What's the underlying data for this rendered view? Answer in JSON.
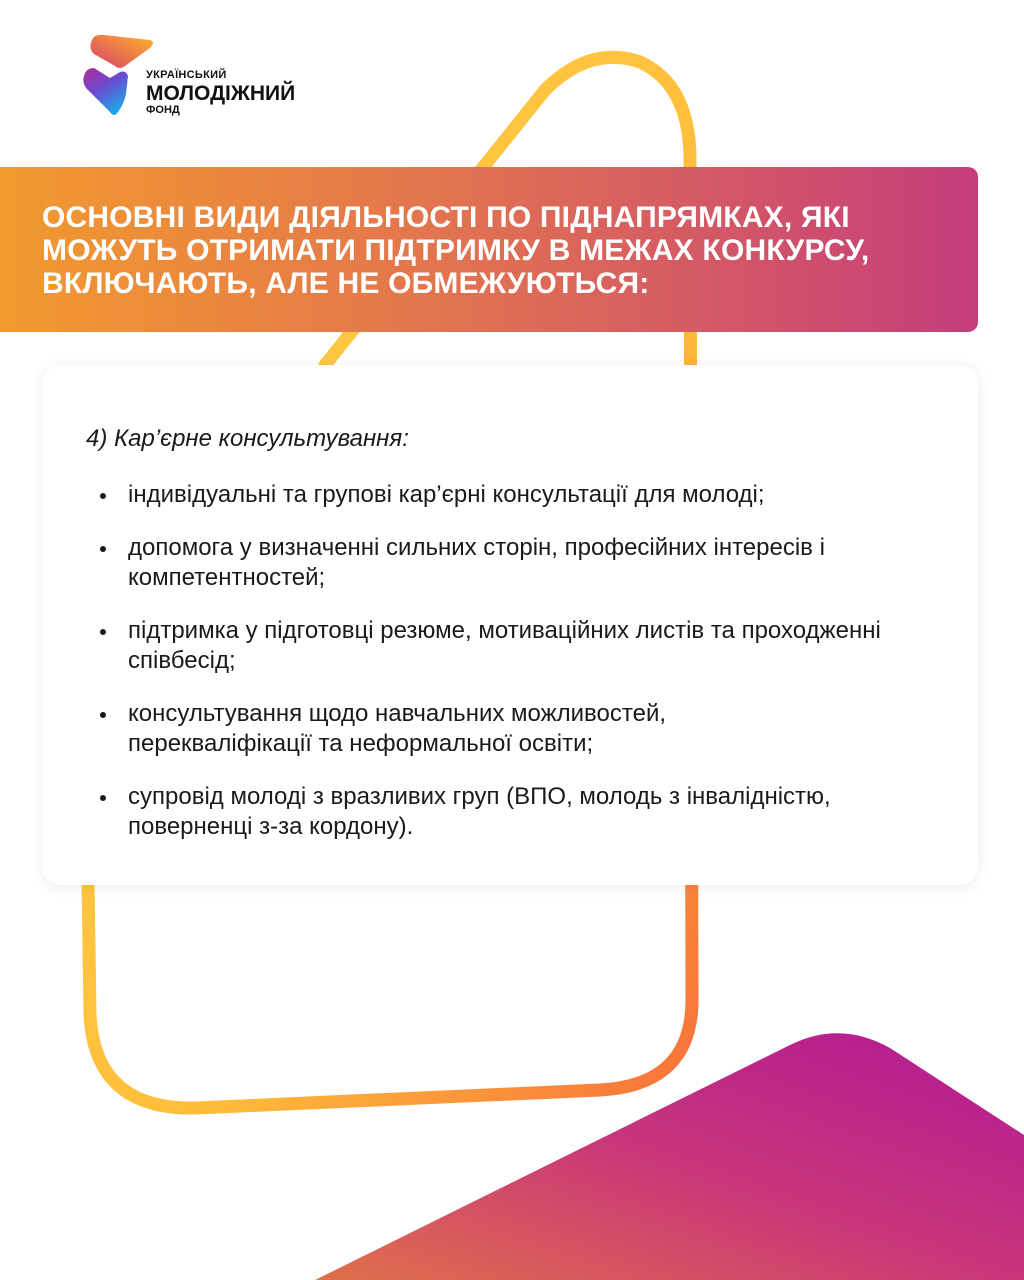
{
  "brand": {
    "logo_line1": "УКРАЇНСЬКИЙ",
    "logo_line2": "МОЛОДІЖНИЙ",
    "logo_line3": "ФОНД"
  },
  "header": {
    "title": "ОСНОВНІ ВИДИ ДІЯЛЬНОСТІ ПО ПІДНАПРЯМКАХ, ЯКІ МОЖУТЬ ОТРИМАТИ ПІДТРИМКУ В МЕЖАХ КОНКУРСУ, ВКЛЮЧАЮТЬ, АЛЕ НЕ ОБМЕЖУЮТЬСЯ:"
  },
  "content": {
    "subtitle": "4) Кар’єрне консультування:",
    "items": [
      "індивідуальні та групові кар’єрні консультації для молоді;",
      "допомога у визначенні сильних сторін, професійних інтересів і компетентностей;",
      "підтримка у підготовці резюме, мотиваційних листів та проходженні співбесід;",
      "консультування щодо навчальних можливостей, перекваліфікації та неформальної освіти;",
      "супровід молоді з вразливих груп (ВПО, молодь з інвалідністю, поверненці з-за кордону)."
    ]
  },
  "colors": {
    "gradient_start": "#f29a2e",
    "gradient_end": "#c53d7c",
    "outline": "#ffc93c",
    "corner_shape": "#b61f8e"
  }
}
